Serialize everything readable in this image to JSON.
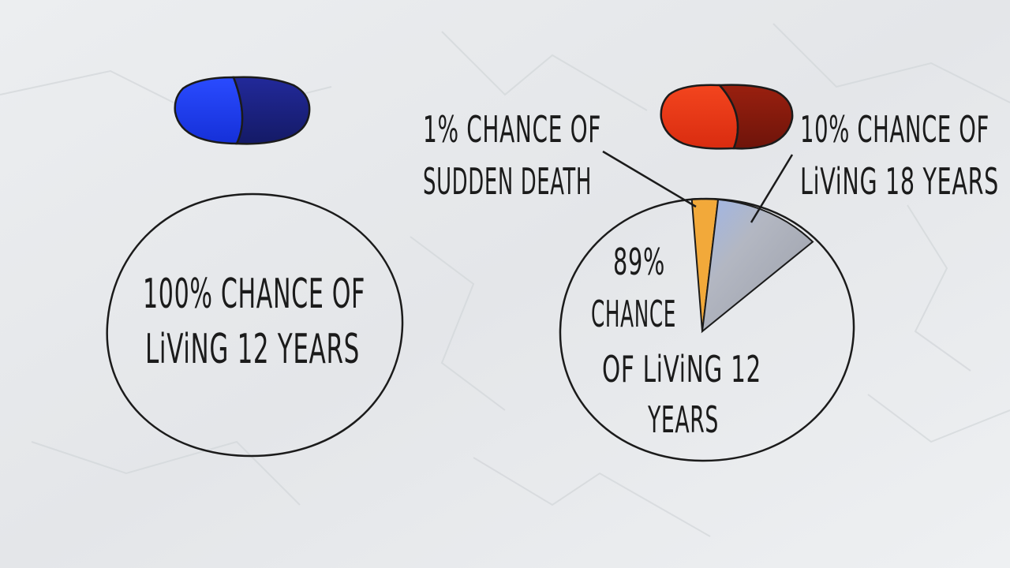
{
  "colors": {
    "paper": "#e9eaec",
    "ink": "#1b1b1b",
    "blue_pill_light": "#1f3ff0",
    "blue_pill_dark": "#17207a",
    "red_pill_light": "#ef3a17",
    "red_pill_dark": "#8a1a0c",
    "sudden_death_slice": "#f2a93a",
    "living_18_slice": "#a9adb8"
  },
  "chart_data": [
    {
      "type": "pie",
      "pill": "blue",
      "slices": [
        {
          "label": "100% CHANCE OF LiViNG 12 YEARS",
          "value": 100
        }
      ],
      "text": {
        "line1": "100% CHANCE OF",
        "line2": "LiViNG 12 YEARS"
      }
    },
    {
      "type": "pie",
      "pill": "red",
      "slices": [
        {
          "label": "1% CHANCE OF SUDDEN DEATH",
          "value": 1,
          "color": "#f2a93a"
        },
        {
          "label": "10% CHANCE OF LiViNG 18 YEARS",
          "value": 10,
          "color": "#a9adb8"
        },
        {
          "label": "89% CHANCE OF LiViNG 12 YEARS",
          "value": 89,
          "color": "none"
        }
      ],
      "text": {
        "sudden_line1": "1% CHANCE OF",
        "sudden_line2": "SUDDEN DEATH",
        "living18_line1": "10% CHANCE OF",
        "living18_line2": "LiViNG 18 YEARS",
        "main_line1": "89%",
        "main_line2": "CHANCE",
        "main_line3": "OF LiViNG 12",
        "main_line4": "YEARS"
      }
    }
  ]
}
